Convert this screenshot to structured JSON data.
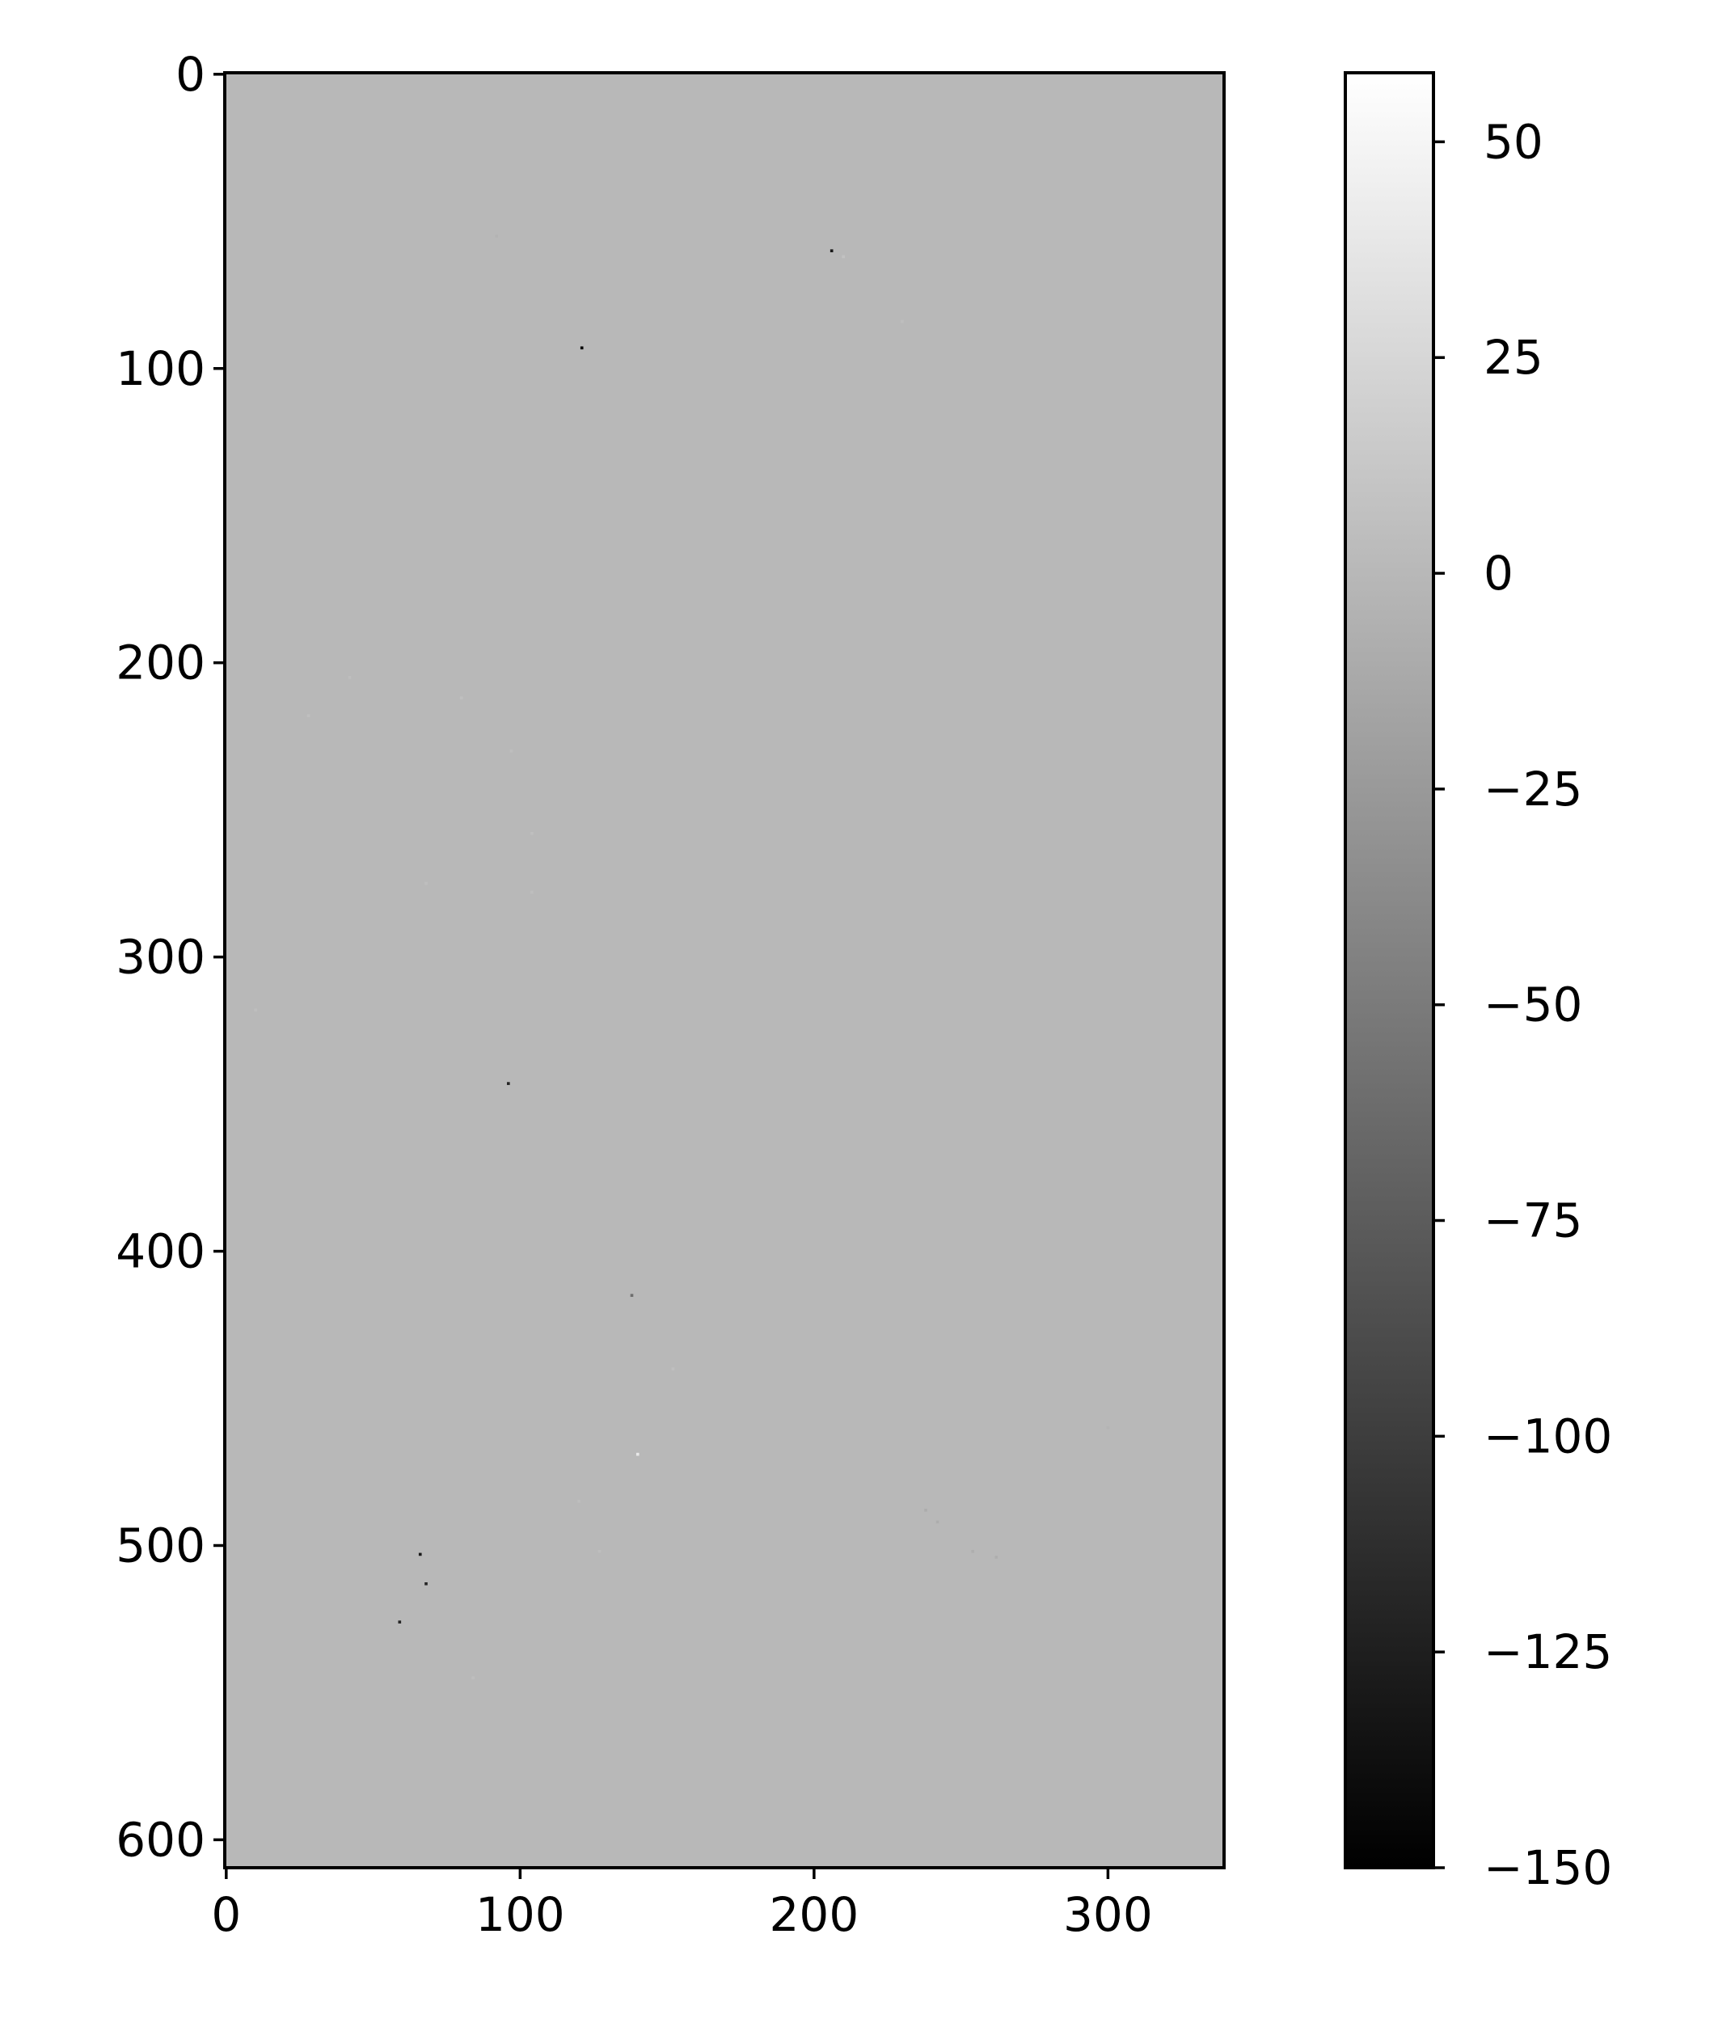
{
  "chart_data": {
    "type": "heatmap",
    "title": "",
    "xlabel": "",
    "ylabel": "",
    "image_shape": {
      "rows": 610,
      "cols": 340
    },
    "xlim": [
      -0.5,
      339.5
    ],
    "ylim": [
      609.5,
      -0.5
    ],
    "x_ticks": [
      0,
      100,
      200,
      300
    ],
    "x_tick_labels": [
      "0",
      "100",
      "200",
      "300"
    ],
    "y_ticks": [
      0,
      100,
      200,
      300,
      400,
      500,
      600
    ],
    "y_tick_labels": [
      "0",
      "100",
      "200",
      "300",
      "400",
      "500",
      "600"
    ],
    "background_value": 0,
    "colormap": "gray",
    "colorbar": {
      "range": [
        -150,
        58
      ],
      "ticks": [
        50,
        25,
        0,
        -25,
        -50,
        -75,
        -100,
        -125,
        -150
      ],
      "tick_labels": [
        "50",
        "25",
        "0",
        "−25",
        "−50",
        "−75",
        "−100",
        "−125",
        "−150"
      ]
    },
    "anomalies": [
      {
        "x": 121,
        "y": 93,
        "value": -150
      },
      {
        "x": 206,
        "y": 60,
        "value": -130
      },
      {
        "x": 96,
        "y": 343,
        "value": -120
      },
      {
        "x": 66,
        "y": 503,
        "value": -130
      },
      {
        "x": 68,
        "y": 513,
        "value": -120
      },
      {
        "x": 59,
        "y": 526,
        "value": -120
      },
      {
        "x": 138,
        "y": 415,
        "value": -60
      },
      {
        "x": 140,
        "y": 469,
        "value": 40
      },
      {
        "x": 238,
        "y": 488,
        "value": -10
      },
      {
        "x": 242,
        "y": 492,
        "value": -9
      },
      {
        "x": 254,
        "y": 502,
        "value": -8
      },
      {
        "x": 262,
        "y": 504,
        "value": -8
      },
      {
        "x": 28,
        "y": 218,
        "value": 6
      },
      {
        "x": 42,
        "y": 205,
        "value": 5
      },
      {
        "x": 80,
        "y": 212,
        "value": 6
      },
      {
        "x": 97,
        "y": 230,
        "value": 5
      },
      {
        "x": 104,
        "y": 258,
        "value": 6
      },
      {
        "x": 68,
        "y": 275,
        "value": 5
      },
      {
        "x": 104,
        "y": 278,
        "value": 5
      },
      {
        "x": 10,
        "y": 318,
        "value": 5
      },
      {
        "x": 152,
        "y": 440,
        "value": 6
      },
      {
        "x": 127,
        "y": 502,
        "value": 5
      },
      {
        "x": 120,
        "y": 485,
        "value": 5
      },
      {
        "x": 84,
        "y": 545,
        "value": 5
      },
      {
        "x": 210,
        "y": 62,
        "value": 8
      },
      {
        "x": 230,
        "y": 84,
        "value": 5
      },
      {
        "x": 92,
        "y": 55,
        "value": -4
      },
      {
        "x": 300,
        "y": 460,
        "value": -3
      }
    ]
  }
}
